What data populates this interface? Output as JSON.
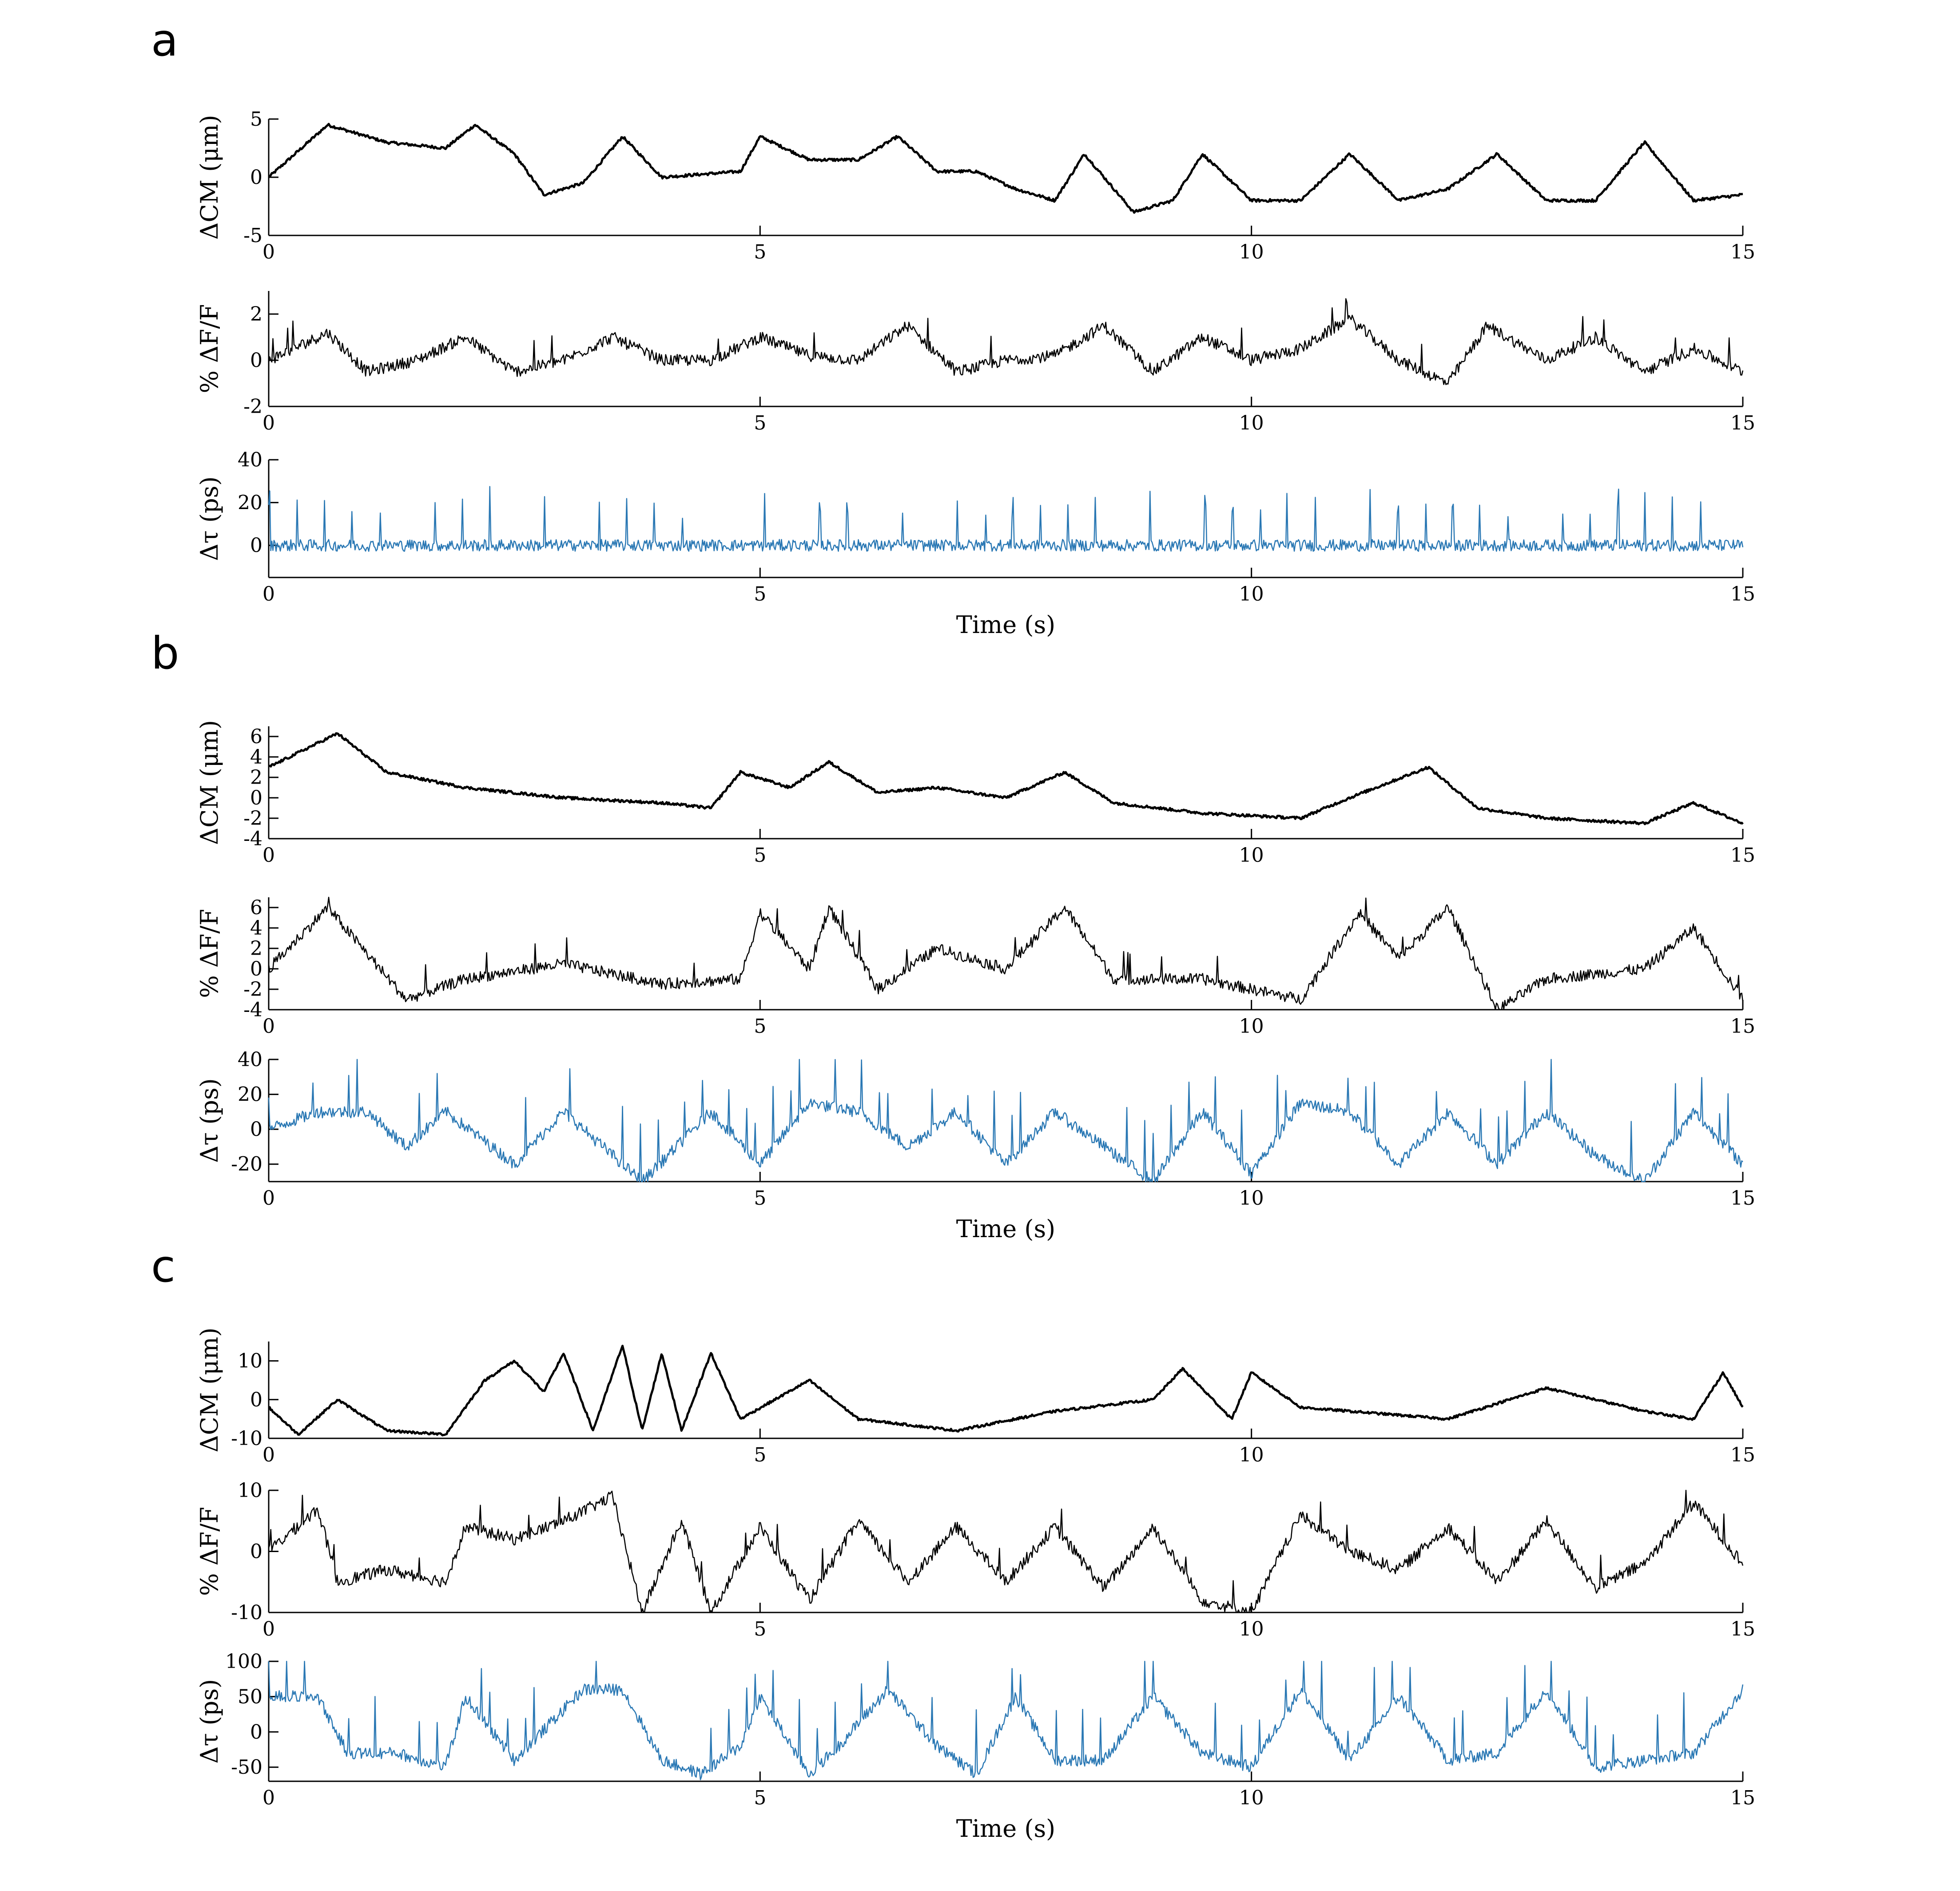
{
  "panels": [
    {
      "letter": "a",
      "xlabel": "Time (s)",
      "subplots": [
        {
          "ylabel": "ΔCM (μm)",
          "yticks": [
            "-5",
            "0",
            "5"
          ]
        },
        {
          "ylabel": "% ΔF/F",
          "yticks": [
            "-2",
            "0",
            "2"
          ]
        },
        {
          "ylabel": "Δτ (ps)",
          "yticks": [
            "0",
            "20",
            "40"
          ]
        }
      ]
    },
    {
      "letter": "b",
      "xlabel": "Time (s)",
      "subplots": [
        {
          "ylabel": "ΔCM (μm)",
          "yticks": [
            "-4",
            "-2",
            "0",
            "2",
            "4",
            "6"
          ]
        },
        {
          "ylabel": "% ΔF/F",
          "yticks": [
            "-4",
            "-2",
            "0",
            "2",
            "4",
            "6"
          ]
        },
        {
          "ylabel": "Δτ (ps)",
          "yticks": [
            "-20",
            "0",
            "20",
            "40"
          ]
        }
      ]
    },
    {
      "letter": "c",
      "xlabel": "Time (s)",
      "subplots": [
        {
          "ylabel": "ΔCM (μm)",
          "yticks": [
            "-10",
            "0",
            "10"
          ]
        },
        {
          "ylabel": "% ΔF/F",
          "yticks": [
            "-10",
            "0",
            "10"
          ]
        },
        {
          "ylabel": "Δτ (ps)",
          "yticks": [
            "-50",
            "0",
            "50",
            "100"
          ]
        }
      ]
    }
  ],
  "xticks": [
    "0",
    "5",
    "10",
    "15"
  ],
  "colors": {
    "black_trace": "#000000",
    "blue_trace": "#2a78b4"
  },
  "chart_data": [
    {
      "type": "line",
      "panel": "a",
      "xlabel": "Time (s)",
      "xlim": [
        0,
        15
      ],
      "series": [
        {
          "ylabel": "ΔCM (μm)",
          "ylim": [
            -5,
            5
          ],
          "x": [
            0,
            0.6,
            1.2,
            1.8,
            2.1,
            2.5,
            2.8,
            3.2,
            3.6,
            4.0,
            4.8,
            5.0,
            5.5,
            6.0,
            6.4,
            6.8,
            7.2,
            7.6,
            8.0,
            8.3,
            8.8,
            9.2,
            9.5,
            10.0,
            10.5,
            11.0,
            11.5,
            12.0,
            12.5,
            13.0,
            13.5,
            14.0,
            14.5,
            15
          ],
          "y": [
            0,
            4.5,
            3,
            2.5,
            4.5,
            2,
            -1.5,
            -0.5,
            3.5,
            0,
            0.5,
            3.5,
            1.5,
            1.5,
            3.5,
            0.5,
            0.5,
            -1,
            -2,
            2,
            -3,
            -2,
            2,
            -2,
            -2,
            2,
            -2,
            -1,
            2,
            -2,
            -2,
            3,
            -2,
            -1.5
          ]
        },
        {
          "ylabel": "% ΔF/F",
          "ylim": [
            -2,
            3
          ],
          "x": [
            0,
            0.6,
            1.0,
            1.5,
            2.0,
            2.5,
            3.0,
            3.5,
            4.0,
            4.5,
            5.0,
            5.5,
            6.0,
            6.5,
            7.0,
            7.5,
            8.0,
            8.5,
            9.0,
            9.5,
            10.0,
            10.5,
            11.0,
            11.5,
            12.0,
            12.4,
            13.0,
            13.5,
            14.0,
            14.5,
            15
          ],
          "y": [
            0,
            1.2,
            -0.5,
            0,
            1,
            -0.5,
            0,
            1,
            0,
            0,
            1,
            0.2,
            0,
            1.5,
            -0.5,
            0,
            0.2,
            1.5,
            -0.5,
            1,
            0,
            0.5,
            1.8,
            0,
            -1,
            1.5,
            0,
            1,
            -0.5,
            0.5,
            -0.5
          ]
        },
        {
          "ylabel": "Δτ (ps)",
          "ylim": [
            -15,
            40
          ],
          "x": [
            0,
            1,
            2,
            3,
            4,
            5,
            6,
            7,
            8,
            9,
            10,
            11,
            12,
            13,
            14,
            15
          ],
          "y": [
            0,
            0,
            0,
            0,
            0,
            0,
            0,
            0,
            0,
            0,
            0,
            0,
            0,
            0,
            0,
            0
          ]
        }
      ]
    },
    {
      "type": "line",
      "panel": "b",
      "xlabel": "Time (s)",
      "xlim": [
        0,
        15
      ],
      "series": [
        {
          "ylabel": "ΔCM (μm)",
          "ylim": [
            -4,
            7
          ],
          "x": [
            0,
            0.7,
            1.2,
            2.0,
            3.0,
            4.0,
            4.5,
            4.8,
            5.3,
            5.7,
            6.2,
            6.8,
            7.5,
            8.1,
            8.6,
            9.5,
            10.5,
            11.0,
            11.8,
            12.3,
            13.0,
            14.0,
            14.5,
            15
          ],
          "y": [
            3,
            6.3,
            2.5,
            1,
            0,
            -0.5,
            -1,
            2.5,
            1,
            3.5,
            0.5,
            1,
            0,
            2.5,
            -0.5,
            -1.5,
            -2,
            0,
            3,
            -1,
            -2,
            -2.5,
            -0.5,
            -2.5
          ]
        },
        {
          "ylabel": "% ΔF/F",
          "ylim": [
            -4,
            7
          ],
          "x": [
            0,
            0.6,
            1.4,
            2.0,
            3.0,
            4.0,
            4.8,
            5.0,
            5.5,
            5.7,
            6.2,
            6.8,
            7.5,
            8.1,
            8.6,
            9.5,
            10.5,
            11.1,
            11.5,
            12.0,
            12.5,
            13.0,
            14.0,
            14.5,
            15
          ],
          "y": [
            0,
            6,
            -3,
            -1,
            0.5,
            -1.5,
            -1,
            5.5,
            0,
            6,
            -2,
            2,
            0,
            6,
            -1,
            -1,
            -3,
            5.5,
            1,
            6,
            -4,
            -1,
            0,
            4,
            -3
          ]
        },
        {
          "ylabel": "Δτ (ps)",
          "ylim": [
            -30,
            40
          ],
          "x": [
            0,
            0.5,
            1.0,
            1.4,
            1.8,
            2.5,
            3.0,
            3.8,
            4.5,
            5.0,
            5.5,
            6.0,
            6.5,
            7.0,
            7.5,
            8.0,
            8.5,
            9.0,
            9.5,
            10.0,
            10.5,
            11.0,
            11.5,
            12.0,
            12.5,
            13.0,
            13.5,
            14.0,
            14.5,
            15
          ],
          "y": [
            0,
            10,
            10,
            -10,
            10,
            -20,
            10,
            -30,
            10,
            -20,
            15,
            10,
            -10,
            10,
            -20,
            10,
            -10,
            -30,
            10,
            -25,
            15,
            10,
            -20,
            10,
            -20,
            10,
            -15,
            -30,
            10,
            -20
          ]
        }
      ]
    },
    {
      "type": "line",
      "panel": "c",
      "xlabel": "Time (s)",
      "xlim": [
        0,
        15
      ],
      "series": [
        {
          "ylabel": "ΔCM (μm)",
          "ylim": [
            -10,
            15
          ],
          "x": [
            0,
            0.3,
            0.7,
            1.2,
            1.8,
            2.2,
            2.5,
            2.8,
            3.0,
            3.3,
            3.6,
            3.8,
            4.0,
            4.2,
            4.5,
            4.8,
            5.5,
            6.0,
            7.0,
            8.0,
            9.0,
            9.3,
            9.8,
            10.0,
            10.5,
            11.0,
            12.0,
            13.0,
            14.0,
            14.5,
            14.8,
            15
          ],
          "y": [
            -2,
            -9,
            0,
            -8,
            -9,
            5,
            10,
            2,
            12,
            -8,
            14,
            -8,
            12,
            -8,
            12,
            -5,
            5,
            -5,
            -8,
            -3,
            0,
            8,
            -5,
            7,
            -2,
            -3,
            -5,
            3,
            -3,
            -5,
            7,
            -2
          ]
        },
        {
          "ylabel": "% ΔF/F",
          "ylim": [
            -10,
            10
          ],
          "x": [
            0,
            0.5,
            0.7,
            1.2,
            1.8,
            2.0,
            2.5,
            3.0,
            3.5,
            3.8,
            4.2,
            4.5,
            5.0,
            5.5,
            6.0,
            6.5,
            7.0,
            7.5,
            8.0,
            8.5,
            9.0,
            9.5,
            10.0,
            10.5,
            11.0,
            11.5,
            12.0,
            12.5,
            13.0,
            13.5,
            14.0,
            14.5,
            15
          ],
          "y": [
            0,
            7,
            -5,
            -3,
            -5,
            4,
            2,
            5,
            9,
            -10,
            5,
            -10,
            4,
            -8,
            5,
            -5,
            4,
            -5,
            4,
            -6,
            4,
            -8,
            -10,
            6,
            0,
            -3,
            4,
            -5,
            5,
            -6,
            -2,
            8,
            -2
          ]
        },
        {
          "ylabel": "Δτ (ps)",
          "ylim": [
            -70,
            100
          ],
          "x": [
            0,
            0.5,
            0.8,
            1.3,
            1.8,
            2.0,
            2.5,
            3.2,
            3.6,
            4.0,
            4.4,
            4.8,
            5.0,
            5.5,
            5.8,
            6.3,
            6.8,
            7.2,
            7.6,
            8.0,
            8.5,
            9.0,
            9.5,
            10.0,
            10.5,
            11.0,
            11.5,
            12.0,
            12.5,
            13.0,
            13.5,
            14.0,
            14.5,
            15
          ],
          "y": [
            50,
            50,
            -30,
            -30,
            -50,
            50,
            -40,
            60,
            60,
            -40,
            -60,
            -20,
            50,
            -60,
            -20,
            60,
            -20,
            -60,
            50,
            -40,
            -40,
            50,
            -30,
            -50,
            60,
            -40,
            50,
            -40,
            -30,
            60,
            -50,
            -40,
            -30,
            60
          ]
        }
      ]
    }
  ]
}
